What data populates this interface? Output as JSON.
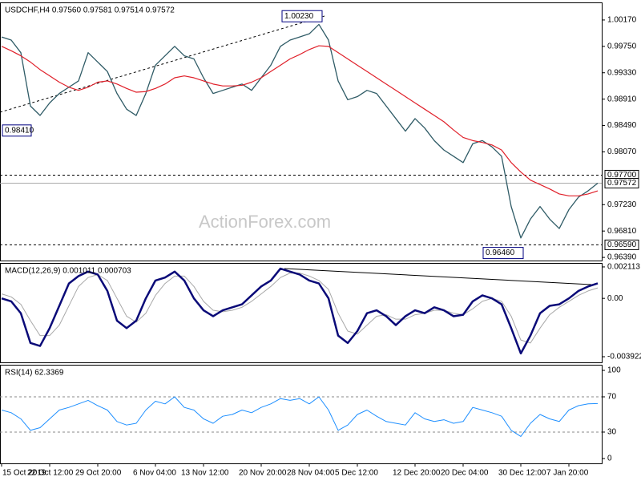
{
  "chart_data": [
    {
      "type": "line",
      "title": "USDCHF,H4  0.97560 0.97581 0.97514 0.97572",
      "watermark": "ActionForex.com",
      "categories": [
        "15 Oct 2019",
        null,
        null,
        null,
        null,
        "22 Oct 12:00",
        null,
        null,
        null,
        null,
        "29 Oct 20:00",
        null,
        null,
        null,
        null,
        null,
        "6 Nov 04:00",
        null,
        null,
        null,
        null,
        "13 Nov 12:00",
        null,
        null,
        null,
        null,
        null,
        "20 Nov 20:00",
        null,
        null,
        null,
        null,
        "28 Nov 04:00",
        null,
        null,
        null,
        null,
        "5 Dec 12:00",
        null,
        null,
        null,
        null,
        null,
        "12 Dec 20:00",
        null,
        null,
        null,
        null,
        "20 Dec 04:00",
        null,
        null,
        null,
        null,
        null,
        "30 Dec 12:00",
        null,
        null,
        null,
        null,
        "7 Jan 20:00",
        null,
        null,
        null
      ],
      "series": [
        {
          "color": "#2f5b66",
          "width": 1.3,
          "values": [
            0.999,
            0.9985,
            0.9965,
            0.988,
            0.9865,
            0.9885,
            0.99,
            0.991,
            0.992,
            0.9965,
            0.995,
            0.9935,
            0.99,
            0.9875,
            0.9865,
            0.99,
            0.9945,
            0.996,
            0.9975,
            0.996,
            0.9955,
            0.9925,
            0.99,
            0.9905,
            0.991,
            0.9915,
            0.9905,
            0.9925,
            0.9945,
            0.9975,
            0.9985,
            0.999,
            0.9995,
            1.001,
            0.9985,
            0.992,
            0.989,
            0.9895,
            0.9905,
            0.99,
            0.988,
            0.986,
            0.984,
            0.986,
            0.9845,
            0.9825,
            0.981,
            0.98,
            0.979,
            0.982,
            0.9825,
            0.9815,
            0.98,
            0.972,
            0.967,
            0.97,
            0.972,
            0.97,
            0.9685,
            0.9715,
            0.9735,
            0.9745,
            0.97572
          ]
        },
        {
          "color": "#e0202a",
          "width": 1.2,
          "values": [
            0.9975,
            0.9968,
            0.996,
            0.995,
            0.9938,
            0.9928,
            0.9918,
            0.991,
            0.9905,
            0.991,
            0.9918,
            0.992,
            0.9915,
            0.9908,
            0.9902,
            0.9903,
            0.9908,
            0.9915,
            0.9925,
            0.9928,
            0.9925,
            0.992,
            0.9915,
            0.9912,
            0.9912,
            0.9913,
            0.9918,
            0.9925,
            0.9935,
            0.9945,
            0.9955,
            0.9962,
            0.997,
            0.9976,
            0.9975,
            0.9965,
            0.9955,
            0.9945,
            0.9935,
            0.9925,
            0.9915,
            0.9905,
            0.9895,
            0.9885,
            0.9875,
            0.9865,
            0.9855,
            0.9842,
            0.983,
            0.9825,
            0.9822,
            0.9818,
            0.981,
            0.979,
            0.9775,
            0.9762,
            0.9755,
            0.9748,
            0.974,
            0.9737,
            0.9737,
            0.974,
            0.9745
          ]
        }
      ],
      "ylim": [
        0.9634,
        1.0045
      ],
      "yticks": [
        {
          "value": 1.0017,
          "label": "1.00170"
        },
        {
          "value": 0.9975,
          "label": "0.99750"
        },
        {
          "value": 0.9933,
          "label": "0.99330"
        },
        {
          "value": 0.9891,
          "label": "0.98910"
        },
        {
          "value": 0.9849,
          "label": "0.98490"
        },
        {
          "value": 0.9807,
          "label": "0.98070"
        },
        {
          "value": 0.9723,
          "label": "0.97230"
        },
        {
          "value": 0.9681,
          "label": "0.96810"
        },
        {
          "value": 0.9639,
          "label": "0.96390"
        }
      ],
      "hlines": [
        {
          "value": 0.977,
          "label": "0.97700"
        },
        {
          "value": 0.9659,
          "label": "0.96590"
        }
      ],
      "last": {
        "value": 0.97572,
        "label": "0.97572"
      },
      "annotations": [
        {
          "value": 1.0023,
          "label": "1.00230"
        },
        {
          "value": 0.9841,
          "label": "0.98410"
        },
        {
          "value": 0.9646,
          "label": "0.96460"
        }
      ]
    },
    {
      "type": "line",
      "title": "MACD(12,26,9) 0.001011 0.000703",
      "series": [
        {
          "color": "#a8a8a8",
          "width": 1,
          "values": [
            0.0003,
            0.0001,
            -0.0004,
            -0.0015,
            -0.0025,
            -0.0025,
            -0.0018,
            -0.0005,
            0.0008,
            0.0014,
            0.0016,
            0.0012,
            0.0,
            -0.0012,
            -0.0016,
            -0.001,
            0.0002,
            0.001,
            0.0015,
            0.0015,
            0.0008,
            -0.0002,
            -0.0008,
            -0.0009,
            -0.0008,
            -0.0006,
            -0.0002,
            0.0003,
            0.0008,
            0.0014,
            0.0017,
            0.0017,
            0.0015,
            0.0012,
            0.0006,
            -0.001,
            -0.0022,
            -0.0024,
            -0.0018,
            -0.0012,
            -0.0011,
            -0.0014,
            -0.0014,
            -0.0011,
            -0.001,
            -0.0008,
            -0.0008,
            -0.001,
            -0.0011,
            -0.0007,
            -0.0002,
            0.0,
            -0.0002,
            -0.0012,
            -0.0028,
            -0.003,
            -0.002,
            -0.0011,
            -0.0006,
            -0.0002,
            0.0002,
            0.0005,
            0.000703
          ]
        },
        {
          "color": "#0a0a78",
          "width": 2.5,
          "values": [
            0.0,
            -0.0002,
            -0.001,
            -0.003,
            -0.0032,
            -0.002,
            -0.0005,
            0.001,
            0.0015,
            0.0018,
            0.0016,
            0.0005,
            -0.0015,
            -0.002,
            -0.0015,
            0.0,
            0.0012,
            0.0014,
            0.0018,
            0.0012,
            0.0,
            -0.0008,
            -0.0012,
            -0.0008,
            -0.0006,
            -0.0004,
            0.0002,
            0.0008,
            0.0012,
            0.002,
            0.0018,
            0.0016,
            0.0012,
            0.001,
            0.0,
            -0.0025,
            -0.003,
            -0.0022,
            -0.001,
            -0.0008,
            -0.0012,
            -0.0018,
            -0.0012,
            -0.0008,
            -0.001,
            -0.0006,
            -0.0008,
            -0.0012,
            -0.0011,
            -0.0002,
            0.0002,
            0.0,
            -0.0004,
            -0.002,
            -0.0037,
            -0.0025,
            -0.001,
            -0.0005,
            -0.0004,
            0.0,
            0.0005,
            0.0008,
            0.001011
          ]
        }
      ],
      "ylim": [
        -0.0043,
        0.00238
      ],
      "yticks": [
        0.002113,
        {
          "value": 0,
          "label": "0.00"
        },
        -0.003922
      ]
    },
    {
      "type": "line",
      "title": "RSI(14) 62.3369",
      "series": [
        {
          "color": "#1e8fff",
          "width": 1,
          "values": [
            55,
            52,
            45,
            32,
            35,
            45,
            55,
            58,
            62,
            66,
            60,
            55,
            42,
            38,
            40,
            55,
            65,
            62,
            70,
            58,
            55,
            45,
            40,
            48,
            50,
            55,
            52,
            58,
            62,
            68,
            66,
            68,
            62,
            70,
            55,
            32,
            38,
            50,
            55,
            48,
            42,
            40,
            38,
            52,
            45,
            42,
            44,
            40,
            42,
            58,
            55,
            52,
            48,
            32,
            25,
            40,
            50,
            45,
            42,
            55,
            60,
            62,
            62.3369
          ]
        }
      ],
      "ylim": [
        -5.5,
        106.4
      ],
      "yticks": [
        100,
        70,
        30,
        0
      ],
      "levels": [
        70,
        30
      ]
    }
  ]
}
